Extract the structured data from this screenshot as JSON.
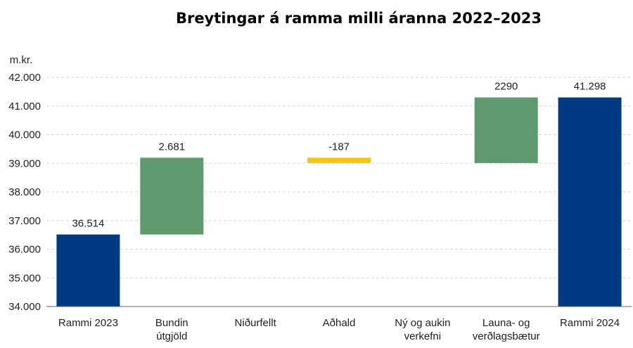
{
  "chart_data": {
    "type": "bar",
    "subtype": "waterfall",
    "title": "Breytingar á ramma milli áranna 2022–2023",
    "ylabel": "m.kr.",
    "ylim": [
      34000,
      42000
    ],
    "yticks": [
      {
        "value": 34000,
        "label": "34.000"
      },
      {
        "value": 35000,
        "label": "35.000"
      },
      {
        "value": 36000,
        "label": "36.000"
      },
      {
        "value": 37000,
        "label": "37.000"
      },
      {
        "value": 38000,
        "label": "38.000"
      },
      {
        "value": 39000,
        "label": "39.000"
      },
      {
        "value": 40000,
        "label": "40.000"
      },
      {
        "value": 41000,
        "label": "41.000"
      },
      {
        "value": 42000,
        "label": "42.000"
      }
    ],
    "grid": true,
    "legend": "none",
    "bars": [
      {
        "category": [
          "Rammi 2023"
        ],
        "start": 34000,
        "end": 36514,
        "label": "36.514",
        "color": "#003a80"
      },
      {
        "category": [
          "Bundin",
          "útgjöld"
        ],
        "start": 36514,
        "end": 39195,
        "label": "2.681",
        "color": "#5e9a6e"
      },
      {
        "category": [
          "Niðurfellt"
        ],
        "start": 39195,
        "end": 39195,
        "label": "",
        "color": "#5e9a6e"
      },
      {
        "category": [
          "Aðhald"
        ],
        "start": 39195,
        "end": 39008,
        "label": "-187",
        "color": "#f5c518"
      },
      {
        "category": [
          "Ný og aukin",
          "verkefni"
        ],
        "start": 39008,
        "end": 39008,
        "label": "",
        "color": "#5e9a6e"
      },
      {
        "category": [
          "Launa- og",
          "verðlagsbætur"
        ],
        "start": 39008,
        "end": 41298,
        "label": "2290",
        "color": "#5e9a6e"
      },
      {
        "category": [
          "Rammi 2024"
        ],
        "start": 34000,
        "end": 41298,
        "label": "41.298",
        "color": "#003a80"
      }
    ]
  }
}
